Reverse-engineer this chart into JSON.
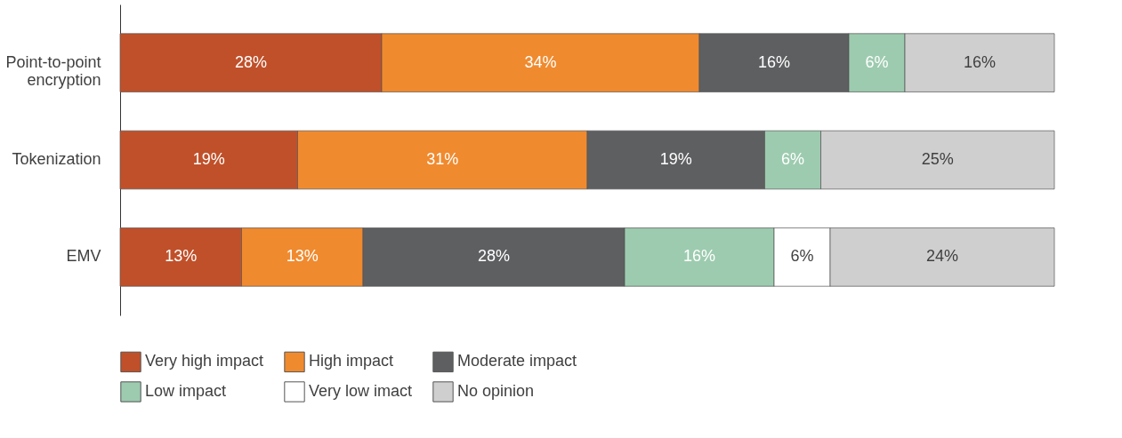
{
  "chart_data": {
    "type": "bar",
    "orientation": "horizontal",
    "stacked": true,
    "categories": [
      "Point-to-point encryption",
      "Tokenization",
      "EMV"
    ],
    "xlim": [
      0,
      100
    ],
    "tick_labels": "y",
    "legend": "bottom",
    "series": [
      {
        "name": "Very high impact",
        "color": "#c0502a",
        "values": [
          28,
          19,
          13
        ],
        "value_labels": [
          "28%",
          "19%",
          "13%"
        ]
      },
      {
        "name": "High impact",
        "color": "#f08a2e",
        "values": [
          34,
          31,
          13
        ],
        "value_labels": [
          "34%",
          "31%",
          "13%"
        ]
      },
      {
        "name": "Moderate impact",
        "color": "#5e5f61",
        "values": [
          16,
          19,
          28
        ],
        "value_labels": [
          "16%",
          "19%",
          "28%"
        ]
      },
      {
        "name": "Low impact",
        "color": "#9dcbaf",
        "values": [
          6,
          6,
          16
        ],
        "value_labels": [
          "6%",
          "6%",
          "16%"
        ]
      },
      {
        "name": "Very low imact",
        "color": "#ffffff",
        "values": [
          null,
          null,
          6
        ],
        "value_labels": [
          null,
          null,
          "6%"
        ]
      },
      {
        "name": "No opinion",
        "color": "#cfcfcf",
        "values": [
          16,
          25,
          24
        ],
        "value_labels": [
          "16%",
          "25%",
          "24%"
        ]
      }
    ]
  }
}
